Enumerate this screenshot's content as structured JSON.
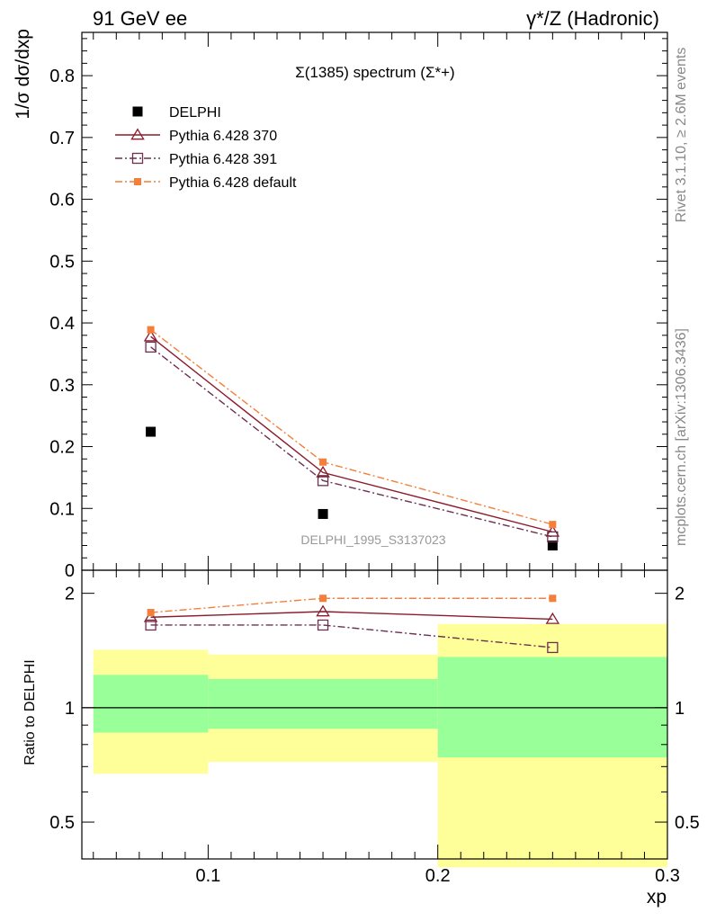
{
  "header": {
    "left": "91 GeV ee",
    "right": "γ*/Z (Hadronic)"
  },
  "side_labels": {
    "rivet": "Rivet 3.1.10, ≥ 2.6M events",
    "mcplots": "mcplots.cern.ch [arXiv:1306.3436]"
  },
  "chart_data": [
    {
      "type": "scatter",
      "title": "Σ(1385) spectrum (Σ*+)",
      "ylabel": "1/σ dσ/dxp",
      "xlim": [
        0.045,
        0.3
      ],
      "ylim": [
        0,
        0.87
      ],
      "yticks": [
        "0",
        "0.1",
        "0.2",
        "0.3",
        "0.4",
        "0.5",
        "0.6",
        "0.7",
        "0.8"
      ],
      "watermark": "DELPHI_1995_S3137023",
      "legend_position": "top-left",
      "series": [
        {
          "name": "DELPHI",
          "color": "#000000",
          "marker": "filled-square",
          "line": "none",
          "x": [
            0.075,
            0.15,
            0.25
          ],
          "y": [
            0.224,
            0.091,
            0.04
          ]
        },
        {
          "name": "Pythia 6.428 370",
          "color": "#8b1a2b",
          "marker": "open-triangle",
          "line": "solid",
          "x": [
            0.075,
            0.15,
            0.25
          ],
          "y": [
            0.378,
            0.158,
            0.062
          ]
        },
        {
          "name": "Pythia 6.428 391",
          "color": "#6b3050",
          "marker": "open-square",
          "line": "dashdot",
          "x": [
            0.075,
            0.15,
            0.25
          ],
          "y": [
            0.361,
            0.145,
            0.054
          ]
        },
        {
          "name": "Pythia 6.428 default",
          "color": "#f47f3a",
          "marker": "filled-square",
          "line": "dashdot",
          "x": [
            0.075,
            0.15,
            0.25
          ],
          "y": [
            0.389,
            0.175,
            0.074
          ]
        }
      ]
    },
    {
      "type": "line",
      "ylabel": "Ratio to DELPHI",
      "xlabel": "xp",
      "xlim": [
        0.045,
        0.3
      ],
      "ylim": [
        0.4,
        2.3
      ],
      "yscale": "log",
      "xticks": [
        "0.1",
        "0.2",
        "0.3"
      ],
      "yticks": [
        "0.5",
        "1",
        "2"
      ],
      "bands": [
        {
          "x0": 0.05,
          "x1": 0.1,
          "yellow": [
            0.67,
            1.42
          ],
          "green": [
            0.86,
            1.22
          ]
        },
        {
          "x0": 0.1,
          "x1": 0.2,
          "yellow": [
            0.72,
            1.38
          ],
          "green": [
            0.88,
            1.19
          ]
        },
        {
          "x0": 0.2,
          "x1": 0.3,
          "yellow": [
            0.38,
            1.66
          ],
          "green": [
            0.74,
            1.36
          ]
        }
      ],
      "series": [
        {
          "name": "Pythia 6.428 370",
          "x": [
            0.075,
            0.15,
            0.25
          ],
          "y": [
            1.73,
            1.79,
            1.71
          ]
        },
        {
          "name": "Pythia 6.428 391",
          "x": [
            0.075,
            0.15,
            0.25
          ],
          "y": [
            1.65,
            1.65,
            1.44
          ]
        },
        {
          "name": "Pythia 6.428 default",
          "x": [
            0.075,
            0.15,
            0.25
          ],
          "y": [
            1.78,
            1.94,
            1.94
          ]
        }
      ]
    }
  ]
}
